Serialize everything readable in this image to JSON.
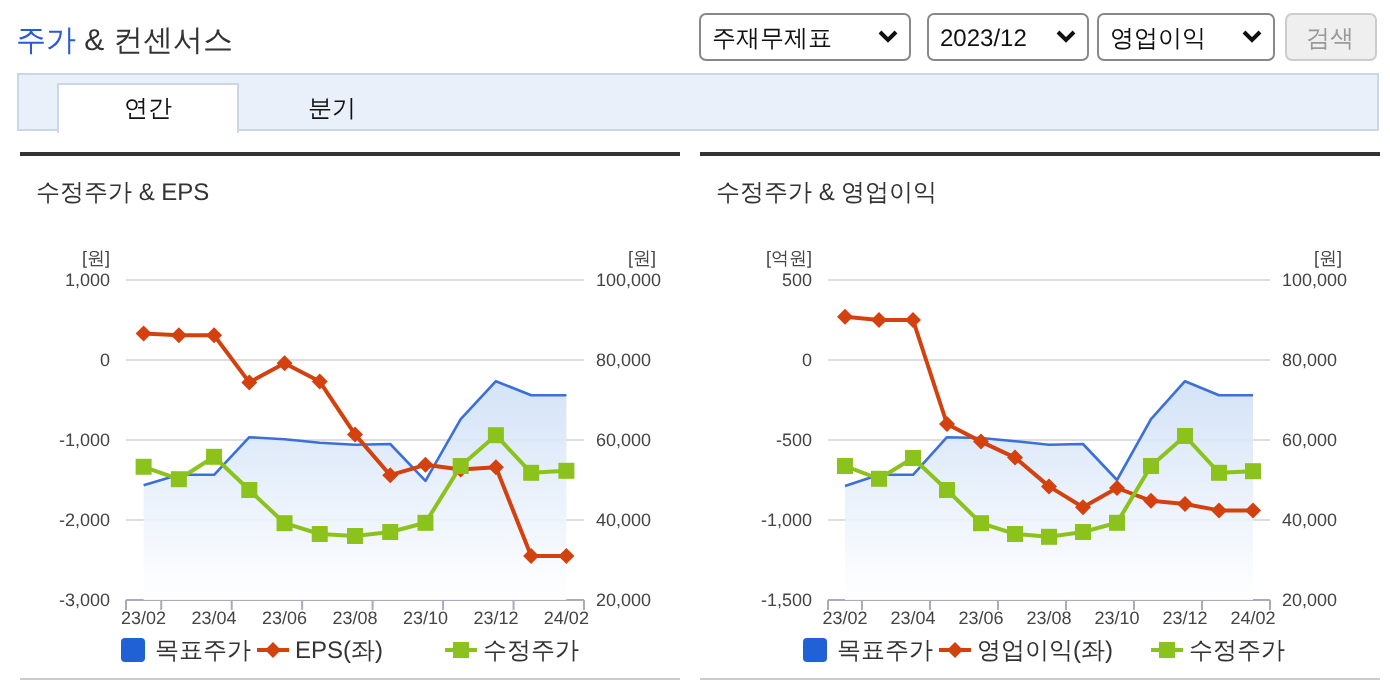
{
  "chart_data": [
    {
      "type": "other",
      "title": "주가 & 컨센서스",
      "annotations": [
        "주재무제표",
        "2023/12",
        "영업이익",
        "검색",
        "연간",
        "분기"
      ]
    },
    {
      "type": "line",
      "title": "수정주가 & EPS",
      "ylabel": "[원]",
      "y2label": "[원]",
      "categories": [
        "23/02",
        null,
        "23/04",
        null,
        "23/06",
        null,
        "23/08",
        null,
        "23/10",
        null,
        "23/12",
        null,
        "24/02"
      ],
      "ylim": [
        -3000,
        1000
      ],
      "yticks": [
        {
          "value": -3000,
          "label": "-3,000"
        },
        {
          "value": -2000,
          "label": "-2,000"
        },
        {
          "value": -1000,
          "label": "-1,000"
        },
        0,
        {
          "value": 1000,
          "label": "1,000"
        }
      ],
      "y2lim": [
        20000,
        100000
      ],
      "y2ticks": [
        {
          "value": 20000,
          "label": "20,000"
        },
        {
          "value": 40000,
          "label": "40,000"
        },
        {
          "value": 60000,
          "label": "60,000"
        },
        {
          "value": 80000,
          "label": "80,000"
        },
        {
          "value": 100000,
          "label": "100,000"
        }
      ],
      "grid": "y",
      "legend": "bottom",
      "series": [
        {
          "name": "목표주가",
          "type": "area",
          "axis": "y2",
          "color": "#3a70d8",
          "marker": "none",
          "values": [
            48700,
            51300,
            51300,
            60700,
            60200,
            59300,
            58800,
            59000,
            49800,
            65200,
            74700,
            71200,
            71200
          ]
        },
        {
          "name": "EPS(좌)",
          "type": "line",
          "color": "#d2410e",
          "marker": "diamond",
          "values": [
            330,
            310,
            310,
            -280,
            -40,
            -270,
            -930,
            -1440,
            -1310,
            -1370,
            -1340,
            -2450,
            -2450
          ]
        },
        {
          "name": "수정주가",
          "type": "line",
          "axis": "y2",
          "color": "#8cc21c",
          "marker": "square",
          "values": [
            53300,
            50200,
            55800,
            47500,
            39200,
            36500,
            36000,
            37000,
            39300,
            53500,
            61200,
            51800,
            52300
          ]
        }
      ]
    },
    {
      "type": "line",
      "title": "수정주가 & 영업이익",
      "ylabel": "[억원]",
      "y2label": "[원]",
      "categories": [
        "23/02",
        null,
        "23/04",
        null,
        "23/06",
        null,
        "23/08",
        null,
        "23/10",
        null,
        "23/12",
        null,
        "24/02"
      ],
      "ylim": [
        -1500,
        500
      ],
      "yticks": [
        {
          "value": -1500,
          "label": "-1,500"
        },
        {
          "value": -1000,
          "label": "-1,000"
        },
        -500,
        0,
        500
      ],
      "y2lim": [
        20000,
        100000
      ],
      "y2ticks": [
        {
          "value": 20000,
          "label": "20,000"
        },
        {
          "value": 40000,
          "label": "40,000"
        },
        {
          "value": 60000,
          "label": "60,000"
        },
        {
          "value": 80000,
          "label": "80,000"
        },
        {
          "value": 100000,
          "label": "100,000"
        }
      ],
      "grid": "y",
      "legend": "bottom",
      "series": [
        {
          "name": "목표주가",
          "type": "area",
          "axis": "y2",
          "color": "#3a70d8",
          "marker": "none",
          "values": [
            48500,
            51300,
            51300,
            60700,
            60500,
            59700,
            58800,
            59000,
            50000,
            65200,
            74700,
            71200,
            71200
          ]
        },
        {
          "name": "영업이익(좌)",
          "type": "line",
          "color": "#d2410e",
          "marker": "diamond",
          "values": [
            270,
            250,
            250,
            -400,
            -510,
            -610,
            -790,
            -920,
            -800,
            -880,
            -900,
            -940,
            -940
          ]
        },
        {
          "name": "수정주가",
          "type": "line",
          "axis": "y2",
          "color": "#8cc21c",
          "marker": "square",
          "values": [
            53500,
            50300,
            55500,
            47500,
            39200,
            36500,
            35800,
            37000,
            39300,
            53500,
            61000,
            51800,
            52200
          ]
        }
      ]
    }
  ]
}
